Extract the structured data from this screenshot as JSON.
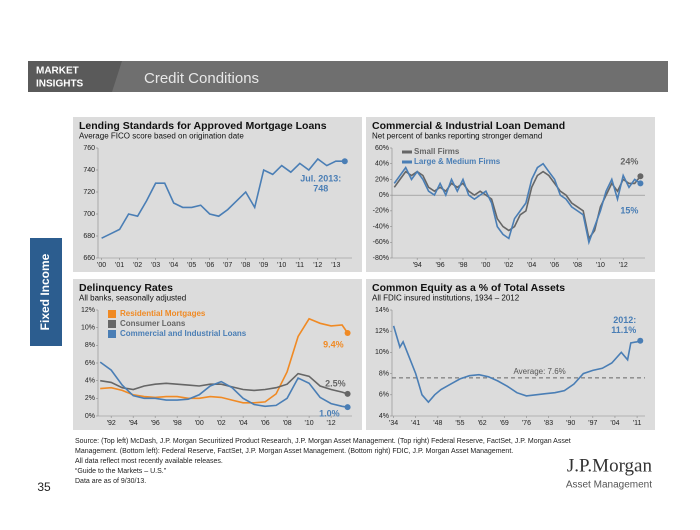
{
  "header": {
    "brand": [
      "MARKET",
      "INSIGHTS"
    ],
    "title": "Credit Conditions"
  },
  "side_tab": "Fixed Income",
  "footer": {
    "source": [
      "Source: (Top left) McDash, J.P. Morgan Securitized Product Research, J.P. Morgan Asset Management. (Top right) Federal Reserve, FactSet, J.P. Morgan Asset",
      "Management. (Bottom left): Federal Reserve, FactSet, J.P. Morgan Asset Management. (Bottom right) FDIC, J.P. Morgan Asset Management.",
      "All data reflect most recently available releases.",
      "“Guide to the Markets – U.S.”",
      "Data are as of 9/30/13."
    ],
    "page_number": "35",
    "logo": "J.P.Morgan",
    "logo_sub": "Asset Management"
  },
  "chart_data": [
    {
      "type": "line",
      "title": "Lending Standards for Approved Mortgage Loans",
      "subtitle": "Average FICO score based on origination date",
      "annotation": "Jul. 2013:",
      "x": [
        2000,
        2000.5,
        2001,
        2001.5,
        2002,
        2002.5,
        2003,
        2003.5,
        2004,
        2004.5,
        2005,
        2005.5,
        2006,
        2006.5,
        2007,
        2007.5,
        2008,
        2008.5,
        2009,
        2009.5,
        2010,
        2010.5,
        2011,
        2011.5,
        2012,
        2012.5,
        2013,
        2013.5
      ],
      "series": [
        {
          "name": "FICO",
          "color": "#4a7eb5",
          "values": [
            678,
            682,
            686,
            700,
            698,
            712,
            728,
            728,
            710,
            706,
            706,
            708,
            700,
            698,
            704,
            712,
            720,
            706,
            740,
            736,
            744,
            738,
            746,
            740,
            750,
            744,
            748,
            748
          ]
        }
      ],
      "xlim": [
        1999.8,
        2013.9
      ],
      "xticks": [
        {
          "value": 2000,
          "label": "'00"
        },
        {
          "value": 2001,
          "label": "'01"
        },
        {
          "value": 2002,
          "label": "'02"
        },
        {
          "value": 2003,
          "label": "'03"
        },
        {
          "value": 2004,
          "label": "'04"
        },
        {
          "value": 2005,
          "label": "'05"
        },
        {
          "value": 2006,
          "label": "'06"
        },
        {
          "value": 2007,
          "label": "'07"
        },
        {
          "value": 2008,
          "label": "'08"
        },
        {
          "value": 2009,
          "label": "'09"
        },
        {
          "value": 2010,
          "label": "'10"
        },
        {
          "value": 2011,
          "label": "'11"
        },
        {
          "value": 2012,
          "label": "'12"
        },
        {
          "value": 2013,
          "label": "'13"
        }
      ],
      "ylim": [
        660,
        760
      ],
      "yticks": [
        660,
        680,
        700,
        720,
        740,
        760
      ],
      "legend": false
    },
    {
      "type": "line",
      "title": "Commercial & Industrial Loan Demand",
      "subtitle": "Net percent of banks reporting stronger demand",
      "x": [
        1992,
        1992.5,
        1993,
        1993.5,
        1994,
        1994.5,
        1995,
        1995.5,
        1996,
        1996.5,
        1997,
        1997.5,
        1998,
        1998.5,
        1999,
        1999.5,
        2000,
        2000.5,
        2001,
        2001.5,
        2002,
        2002.5,
        2003,
        2003.5,
        2004,
        2004.5,
        2005,
        2005.5,
        2006,
        2006.5,
        2007,
        2007.5,
        2008,
        2008.5,
        2009,
        2009.5,
        2010,
        2010.5,
        2011,
        2011.5,
        2012,
        2012.5,
        2013,
        2013.5
      ],
      "series": [
        {
          "name": "Small Firms",
          "color": "#666666",
          "end_label": "24%",
          "values": [
            10,
            20,
            30,
            25,
            30,
            25,
            10,
            5,
            10,
            5,
            15,
            10,
            15,
            5,
            0,
            5,
            0,
            -5,
            -30,
            -40,
            -45,
            -40,
            -25,
            -20,
            10,
            25,
            30,
            25,
            15,
            5,
            0,
            -10,
            -15,
            -20,
            -55,
            -45,
            -15,
            0,
            15,
            5,
            20,
            15,
            15,
            24
          ]
        },
        {
          "name": "Large & Medium Firms",
          "color": "#4a7eb5",
          "end_label": "15%",
          "values": [
            15,
            25,
            35,
            20,
            30,
            20,
            5,
            0,
            15,
            0,
            20,
            5,
            20,
            0,
            -5,
            0,
            5,
            -10,
            -40,
            -50,
            -55,
            -30,
            -20,
            -10,
            20,
            35,
            40,
            30,
            20,
            0,
            -5,
            -15,
            -20,
            -25,
            -60,
            -40,
            -20,
            5,
            20,
            -5,
            25,
            10,
            20,
            15
          ]
        }
      ],
      "xlim": [
        1991.8,
        2013.9
      ],
      "xticks": [
        {
          "value": 1994,
          "label": "'94"
        },
        {
          "value": 1996,
          "label": "'96"
        },
        {
          "value": 1998,
          "label": "'98"
        },
        {
          "value": 2000,
          "label": "'00"
        },
        {
          "value": 2002,
          "label": "'02"
        },
        {
          "value": 2004,
          "label": "'04"
        },
        {
          "value": 2006,
          "label": "'06"
        },
        {
          "value": 2008,
          "label": "'08"
        },
        {
          "value": 2010,
          "label": "'10"
        },
        {
          "value": 2012,
          "label": "'12"
        }
      ],
      "ylim": [
        -80,
        60
      ],
      "yticks": [
        {
          "value": -80,
          "label": "-80%"
        },
        {
          "value": -60,
          "label": "-60%"
        },
        {
          "value": -40,
          "label": "-40%"
        },
        {
          "value": -20,
          "label": "-20%"
        },
        {
          "value": 0,
          "label": "0%"
        },
        {
          "value": 20,
          "label": "20%"
        },
        {
          "value": 40,
          "label": "40%"
        },
        {
          "value": 60,
          "label": "60%"
        }
      ],
      "legend": true
    },
    {
      "type": "line",
      "title": "Delinquency Rates",
      "subtitle": "All banks, seasonally adjusted",
      "x": [
        1991,
        1992,
        1993,
        1994,
        1995,
        1996,
        1997,
        1998,
        1999,
        2000,
        2001,
        2002,
        2003,
        2004,
        2005,
        2006,
        2007,
        2008,
        2009,
        2010,
        2011,
        2012,
        2013,
        2013.5
      ],
      "series": [
        {
          "name": "Residential Mortgages",
          "color": "#f08a24",
          "end_label": "9.4%",
          "values": [
            3.1,
            3.2,
            2.9,
            2.4,
            2.2,
            2.1,
            2.2,
            2.2,
            2.0,
            2.0,
            2.2,
            2.1,
            1.8,
            1.5,
            1.5,
            1.6,
            2.5,
            5.0,
            9.0,
            11.0,
            10.5,
            10.2,
            10.3,
            9.4
          ]
        },
        {
          "name": "Consumer Loans",
          "color": "#666666",
          "end_label": "2.5%",
          "values": [
            4.0,
            3.8,
            3.2,
            3.0,
            3.4,
            3.6,
            3.7,
            3.6,
            3.5,
            3.4,
            3.6,
            3.6,
            3.3,
            3.0,
            2.9,
            3.0,
            3.2,
            3.6,
            4.8,
            4.5,
            3.4,
            3.0,
            2.7,
            2.5
          ]
        },
        {
          "name": "Commercial and Industrial Loans",
          "color": "#4a7eb5",
          "end_label": "1.0%",
          "values": [
            6.1,
            5.2,
            3.5,
            2.3,
            2.0,
            2.0,
            1.8,
            1.8,
            1.9,
            2.4,
            3.4,
            3.9,
            3.2,
            2.0,
            1.3,
            1.1,
            1.2,
            2.0,
            4.3,
            3.7,
            2.1,
            1.4,
            1.1,
            1.0
          ]
        }
      ],
      "xlim": [
        1990.8,
        2013.9
      ],
      "xticks": [
        {
          "value": 1992,
          "label": "'92"
        },
        {
          "value": 1994,
          "label": "'94"
        },
        {
          "value": 1996,
          "label": "'96"
        },
        {
          "value": 1998,
          "label": "'98"
        },
        {
          "value": 2000,
          "label": "'00"
        },
        {
          "value": 2002,
          "label": "'02"
        },
        {
          "value": 2004,
          "label": "'04"
        },
        {
          "value": 2006,
          "label": "'06"
        },
        {
          "value": 2008,
          "label": "'08"
        },
        {
          "value": 2010,
          "label": "'10"
        },
        {
          "value": 2012,
          "label": "'12"
        }
      ],
      "ylim": [
        0,
        12
      ],
      "yticks": [
        {
          "value": 0,
          "label": "0%"
        },
        {
          "value": 2,
          "label": "2%"
        },
        {
          "value": 4,
          "label": "4%"
        },
        {
          "value": 6,
          "label": "6%"
        },
        {
          "value": 8,
          "label": "8%"
        },
        {
          "value": 10,
          "label": "10%"
        },
        {
          "value": 12,
          "label": "12%"
        }
      ],
      "legend": true
    },
    {
      "type": "line",
      "title": "Common Equity as a % of Total Assets",
      "subtitle": "All FDIC insured institutions, 1934 – 2012",
      "annotation": "2012:",
      "average": {
        "value": 7.6,
        "label": "Average: 7.6%"
      },
      "x": [
        1934,
        1936,
        1937,
        1939,
        1941,
        1943,
        1945,
        1947,
        1949,
        1952,
        1955,
        1958,
        1961,
        1964,
        1967,
        1970,
        1973,
        1976,
        1979,
        1982,
        1985,
        1988,
        1991,
        1994,
        1997,
        2000,
        2003,
        2006,
        2008,
        2009,
        2011,
        2012
      ],
      "series": [
        {
          "name": "Common Equity",
          "color": "#4a7eb5",
          "end_label": "11.1%",
          "values": [
            12.5,
            10.5,
            11,
            9.5,
            8,
            6,
            5.3,
            6,
            6.5,
            7.0,
            7.5,
            7.8,
            7.9,
            7.7,
            7.3,
            6.8,
            6.2,
            5.9,
            6.0,
            6.1,
            6.2,
            6.4,
            7.0,
            8.0,
            8.3,
            8.5,
            9.0,
            10.0,
            9.3,
            10.9,
            11.0,
            11.1
          ]
        }
      ],
      "xlim": [
        1933.5,
        2013.5
      ],
      "xticks": [
        {
          "value": 1934,
          "label": "'34"
        },
        {
          "value": 1941,
          "label": "'41"
        },
        {
          "value": 1948,
          "label": "'48"
        },
        {
          "value": 1955,
          "label": "'55"
        },
        {
          "value": 1962,
          "label": "'62"
        },
        {
          "value": 1969,
          "label": "'69"
        },
        {
          "value": 1976,
          "label": "'76"
        },
        {
          "value": 1983,
          "label": "'83"
        },
        {
          "value": 1990,
          "label": "'90"
        },
        {
          "value": 1997,
          "label": "'97"
        },
        {
          "value": 2004,
          "label": "'04"
        },
        {
          "value": 2011,
          "label": "'11"
        }
      ],
      "ylim": [
        4,
        14
      ],
      "yticks": [
        {
          "value": 4,
          "label": "4%"
        },
        {
          "value": 6,
          "label": "6%"
        },
        {
          "value": 8,
          "label": "8%"
        },
        {
          "value": 10,
          "label": "10%"
        },
        {
          "value": 12,
          "label": "12%"
        },
        {
          "value": 14,
          "label": "14%"
        }
      ],
      "legend": false
    }
  ]
}
